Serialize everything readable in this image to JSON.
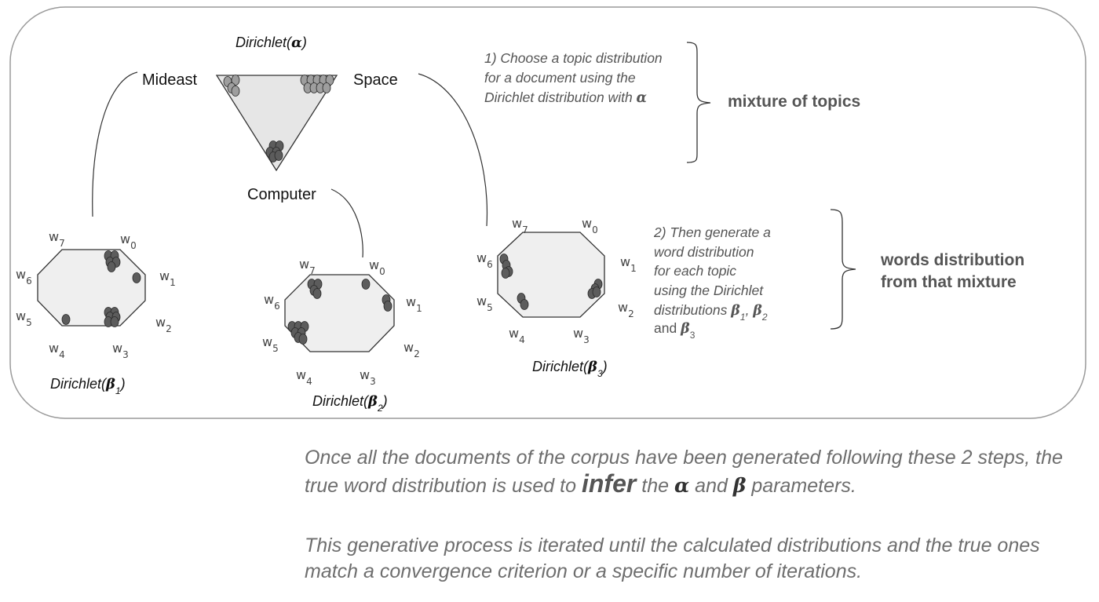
{
  "alpha_label": {
    "prefix": "Dirichlet(",
    "sym": "α",
    "suffix": ")"
  },
  "topics": {
    "mideast": "Mideast",
    "space": "Space",
    "computer": "Computer"
  },
  "beta_labels": [
    {
      "prefix": "Dirichlet(",
      "sym": "β",
      "sub": "1",
      "suffix": ")"
    },
    {
      "prefix": "Dirichlet(",
      "sym": "β",
      "sub": "2",
      "suffix": ")"
    },
    {
      "prefix": "Dirichlet(",
      "sym": "β",
      "sub": "3",
      "suffix": ")"
    }
  ],
  "word_labels": [
    "w0",
    "w1",
    "w2",
    "w3",
    "w4",
    "w5",
    "w6",
    "w7"
  ],
  "step1": {
    "lines": [
      "1) Choose a topic distribution",
      "for a document using the",
      "Dirichlet distribution with "
    ],
    "sym": "α",
    "result": "mixture of topics"
  },
  "step2": {
    "lines": [
      "2) Then generate a",
      "word distribution",
      "for each topic",
      "using the Dirichlet",
      "distributions "
    ],
    "sym1": "β",
    "sub1": "1",
    "sep1": ", ",
    "sym2": "β",
    "sub2": "2",
    "and": "and ",
    "sym3": "β",
    "sub3": "3",
    "result_line1": "words distribution",
    "result_line2": "from that mixture"
  },
  "caption1": {
    "a": "Once all the documents of the corpus have been generated following these 2 steps, the true word distribution is used to ",
    "infer": "infer",
    "b": " the ",
    "alpha": "α",
    "c": " and ",
    "beta": "β",
    "d": " parameters."
  },
  "caption2": "This generative process is iterated until the calculated distributions and the true ones match a convergence criterion or a specific number of iterations.",
  "colors": {
    "border": "#9a9a9a",
    "shape_fill": "#efefef",
    "dot_dark": "#5c5c5c",
    "dot_light": "#9e9e9e"
  }
}
